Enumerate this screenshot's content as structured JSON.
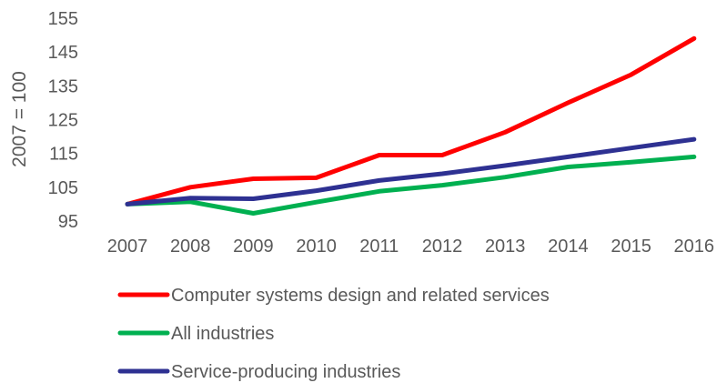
{
  "chart_data": {
    "type": "line",
    "title": "",
    "xlabel": "",
    "ylabel": "2007 = 100",
    "x": [
      "2007",
      "2008",
      "2009",
      "2010",
      "2011",
      "2012",
      "2013",
      "2014",
      "2015",
      "2016"
    ],
    "yticks": [
      "95",
      "105",
      "115",
      "125",
      "135",
      "145",
      "155"
    ],
    "ylim": [
      95,
      155
    ],
    "grid": false,
    "legend_position": "bottom",
    "series": [
      {
        "name": "Computer systems design and related services",
        "color": "#ff0000",
        "values": [
          100,
          105,
          107.5,
          107.8,
          114.5,
          114.5,
          121.3,
          130.0,
          138.3,
          149.0
        ]
      },
      {
        "name": "All industries",
        "color": "#00b050",
        "values": [
          100,
          100.7,
          97.3,
          100.6,
          103.8,
          105.6,
          108.0,
          111.0,
          112.4,
          114.0
        ]
      },
      {
        "name": "Service-producing industries",
        "color": "#2e3192",
        "values": [
          100,
          101.8,
          101.6,
          104.0,
          107.0,
          109.0,
          111.4,
          114.0,
          116.6,
          119.2
        ]
      }
    ]
  }
}
